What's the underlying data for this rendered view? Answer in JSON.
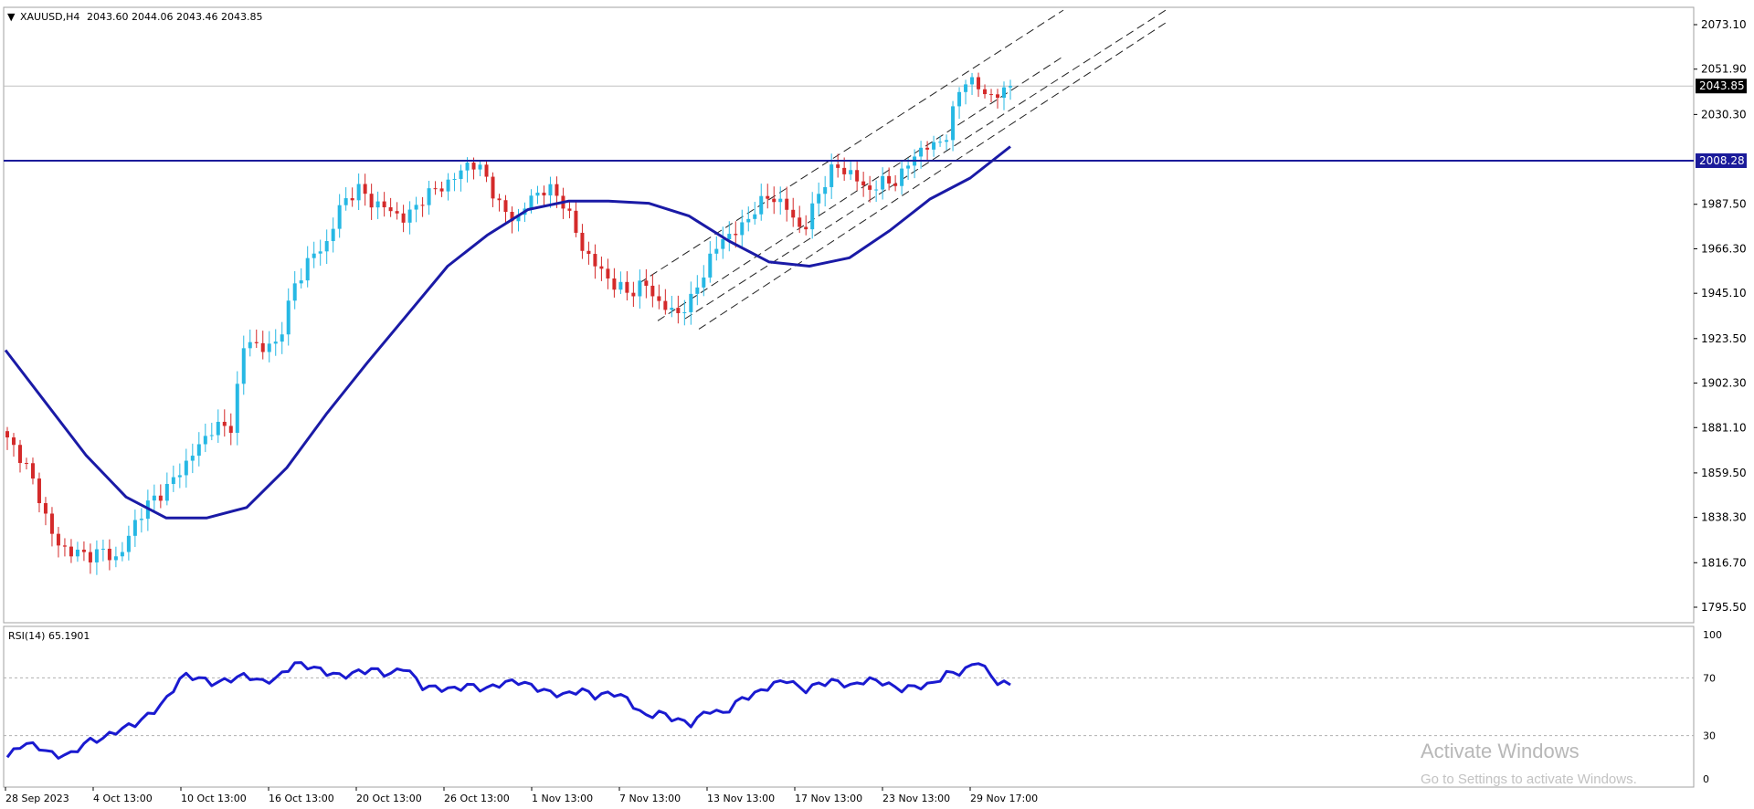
{
  "header": {
    "symbol_label": "XAUUSD,H4",
    "ohlc": "2043.60 2044.06 2043.46 2043.85",
    "menu_glyph": "▼"
  },
  "price_axis": {
    "ticks": [
      "2073.10",
      "2051.90",
      "2030.30",
      "2008.28",
      "1987.50",
      "1966.30",
      "1945.10",
      "1923.50",
      "1902.30",
      "1881.10",
      "1859.50",
      "1838.30",
      "1816.70",
      "1795.50"
    ],
    "tick_values": [
      2073.1,
      2051.9,
      2030.3,
      2008.28,
      1987.5,
      1966.3,
      1945.1,
      1923.5,
      1902.3,
      1881.1,
      1859.5,
      1838.3,
      1816.7,
      1795.5
    ],
    "current_price": "2043.85",
    "current_value": 2043.85,
    "level_price": "2008.28",
    "level_value": 2008.28
  },
  "rsi_panel": {
    "label": "RSI(14) 65.1901",
    "ticks": [
      "100",
      "70",
      "30",
      "0"
    ],
    "tick_values": [
      100,
      70,
      30,
      0
    ]
  },
  "time_axis": {
    "labels": [
      "28 Sep 2023",
      "4 Oct 13:00",
      "10 Oct 13:00",
      "16 Oct 13:00",
      "20 Oct 13:00",
      "26 Oct 13:00",
      "1 Nov 13:00",
      "7 Nov 13:00",
      "13 Nov 13:00",
      "17 Nov 13:00",
      "23 Nov 13:00",
      "29 Nov 17:00"
    ]
  },
  "watermark": {
    "title": "Activate Windows",
    "subtitle": "Go to Settings to activate Windows."
  },
  "colors": {
    "bull": "#26b8e4",
    "bear": "#d42a2a",
    "ma": "#1a1aa6",
    "rsi": "#1a1ad0",
    "level": "#1b1b9a",
    "channel": "#222222",
    "grid": "#b0b0b0"
  },
  "chart_data": [
    {
      "type": "candlestick",
      "title": "XAUUSD,H4",
      "ylim": [
        1790,
        2080
      ],
      "x_labels": [
        "28 Sep 2023",
        "4 Oct 13:00",
        "10 Oct 13:00",
        "16 Oct 13:00",
        "20 Oct 13:00",
        "26 Oct 13:00",
        "1 Nov 13:00",
        "7 Nov 13:00",
        "13 Nov 13:00",
        "17 Nov 13:00",
        "23 Nov 13:00",
        "29 Nov 17:00"
      ],
      "anchor_closes": [
        1875,
        1866,
        1848,
        1826,
        1822,
        1820,
        1822,
        1818,
        1836,
        1846,
        1852,
        1862,
        1872,
        1882,
        1880,
        1925,
        1918,
        1922,
        1948,
        1962,
        1968,
        1988,
        1995,
        1988,
        1985,
        1980,
        1990,
        1995,
        1999,
        2008,
        2002,
        1985,
        1980,
        1992,
        1995,
        1988,
        1968,
        1958,
        1950,
        1945,
        1950,
        1940,
        1935,
        1942,
        1960,
        1972,
        1975,
        1986,
        1992,
        1985,
        1974,
        1994,
        2006,
        2002,
        1994,
        1998,
        1999,
        2012,
        2015,
        2020,
        2048,
        2043,
        2038,
        2043.85
      ],
      "horizontal_line": 2008.28,
      "series": [
        {
          "name": "MA",
          "values": [
            1918,
            1893,
            1868,
            1848,
            1838,
            1838,
            1843,
            1862,
            1888,
            1912,
            1935,
            1958,
            1973,
            1985,
            1989,
            1989,
            1988,
            1982,
            1970,
            1960,
            1958,
            1962,
            1975,
            1990,
            2000,
            2015
          ]
        }
      ]
    },
    {
      "type": "line",
      "title": "RSI(14) 65.1901",
      "ylim": [
        0,
        100
      ],
      "yticks": [
        100,
        70,
        30,
        0
      ],
      "series": [
        {
          "name": "RSI(14)",
          "values": [
            15,
            25,
            22,
            16,
            17,
            26,
            28,
            34,
            38,
            45,
            55,
            72,
            70,
            66,
            69,
            72,
            67,
            70,
            80,
            78,
            74,
            71,
            74,
            76,
            72,
            78,
            64,
            63,
            62,
            65,
            62,
            66,
            68,
            64,
            60,
            58,
            62,
            57,
            60,
            55,
            43,
            46,
            41,
            38,
            48,
            45,
            55,
            59,
            65,
            69,
            61,
            66,
            68,
            64,
            69,
            67,
            62,
            64,
            65,
            73,
            74,
            82,
            68,
            65
          ]
        }
      ]
    }
  ]
}
